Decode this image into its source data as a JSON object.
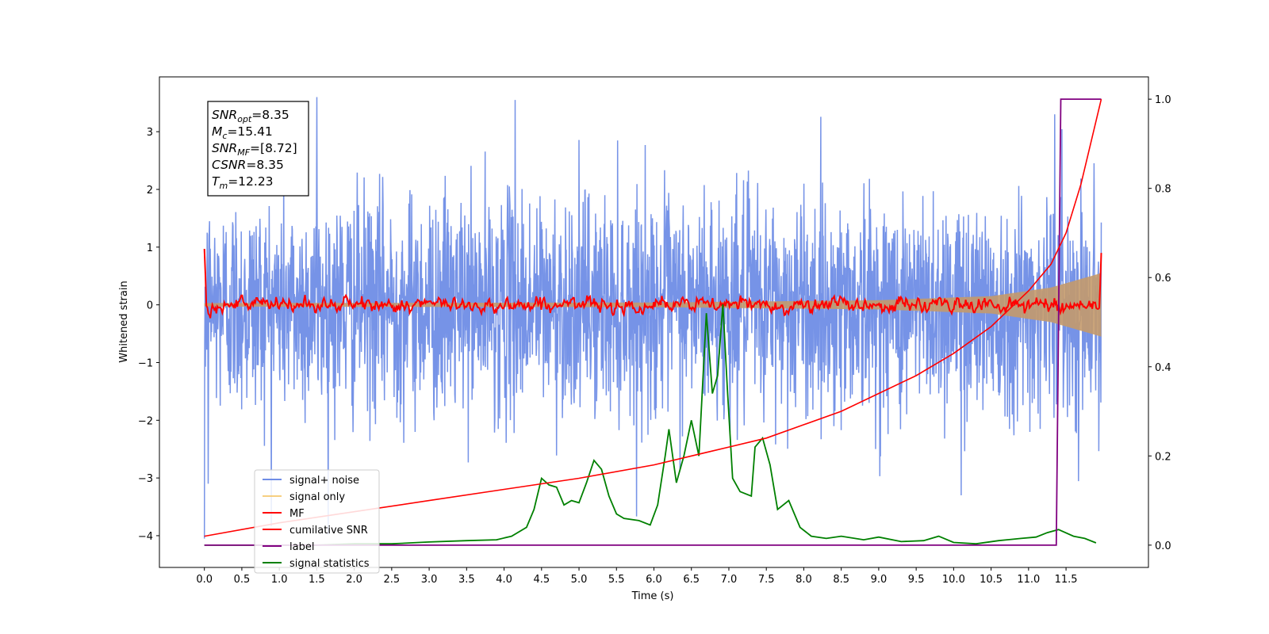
{
  "chart_data": {
    "type": "line",
    "title": "",
    "xlabel": "Time (s)",
    "ylabel": "Whitened strain",
    "xlim": [
      -0.6,
      12.6
    ],
    "ylim": [
      -4.55,
      3.95
    ],
    "y2lim": [
      -0.05,
      1.05
    ],
    "x_ticks": [
      0.0,
      0.5,
      1.0,
      1.5,
      2.0,
      2.5,
      3.0,
      3.5,
      4.0,
      4.5,
      5.0,
      5.5,
      6.0,
      6.5,
      7.0,
      7.5,
      8.0,
      8.5,
      9.0,
      9.5,
      10.0,
      10.5,
      11.0,
      11.5
    ],
    "x_tick_labels": [
      "0.0",
      "0.5",
      "1.0",
      "1.5",
      "2.0",
      "2.5",
      "3.0",
      "3.5",
      "4.0",
      "4.5",
      "5.0",
      "5.5",
      "6.0",
      "6.5",
      "7.0",
      "7.5",
      "8.0",
      "8.5",
      "9.0",
      "9.5",
      "10.0",
      "10.5",
      "11.0",
      "11.5"
    ],
    "y_ticks": [
      3,
      2,
      1,
      0,
      -1,
      -2,
      -3,
      -4
    ],
    "y_tick_labels": [
      "3",
      "2",
      "1",
      "0",
      "−1",
      "−2",
      "−3",
      "−4"
    ],
    "y2_ticks": [
      1.0,
      0.8,
      0.6,
      0.4,
      0.2,
      0.0
    ],
    "y2_tick_labels": [
      "1.0",
      "0.8",
      "0.6",
      "0.4",
      "0.2",
      "0.0"
    ],
    "grid": false,
    "legend_position": "lower-left",
    "annotation": [
      {
        "base": "SNR",
        "sub": "opt",
        "rest": "=8.35"
      },
      {
        "base": "M",
        "sub": "c",
        "rest": "=15.41"
      },
      {
        "base": "SNR",
        "sub": "MF",
        "rest": "=[8.72]"
      },
      {
        "base": "CSNR",
        "sub": "",
        "rest": "=8.35"
      },
      {
        "base": "T",
        "sub": "m",
        "rest": "=12.23"
      }
    ],
    "series": [
      {
        "name": "signal+ noise",
        "color": "#6f8de6",
        "axis": "left",
        "style": "noise",
        "x_range": [
          0.0,
          11.97
        ],
        "amplitude_rms": 1.0,
        "extremes": [
          [
            0.0,
            -4.05
          ],
          [
            1.5,
            3.6
          ],
          [
            4.15,
            3.55
          ],
          [
            10.1,
            -3.3
          ],
          [
            11.35,
            3.3
          ],
          [
            0.05,
            -3.1
          ]
        ]
      },
      {
        "name": "signal only",
        "color": "#f5c361",
        "axis": "left",
        "style": "chirp",
        "x_range": [
          0.0,
          11.97
        ],
        "envelope": [
          [
            0.0,
            0.03
          ],
          [
            6.0,
            0.04
          ],
          [
            9.0,
            0.08
          ],
          [
            10.5,
            0.15
          ],
          [
            11.3,
            0.3
          ],
          [
            11.97,
            0.55
          ]
        ]
      },
      {
        "name": "MF",
        "color": "#ff0000",
        "axis": "left",
        "style": "mf",
        "x_range": [
          0.0,
          11.97
        ],
        "start_value": 0.97,
        "end_value": 0.9,
        "baseline": 0.0,
        "fluctuation": 0.12
      },
      {
        "name": "cumilative SNR",
        "color": "#ff0000",
        "axis": "right",
        "x": [
          0.0,
          1.0,
          2.0,
          3.0,
          4.0,
          5.0,
          6.0,
          7.0,
          7.5,
          8.0,
          8.5,
          9.0,
          9.5,
          10.0,
          10.5,
          11.0,
          11.3,
          11.5,
          11.7,
          11.97
        ],
        "values": [
          0.02,
          0.05,
          0.075,
          0.1,
          0.125,
          0.15,
          0.18,
          0.22,
          0.24,
          0.27,
          0.3,
          0.34,
          0.38,
          0.43,
          0.49,
          0.57,
          0.63,
          0.7,
          0.81,
          1.0
        ]
      },
      {
        "name": "label",
        "color": "#800080",
        "axis": "right",
        "x": [
          0.0,
          11.37,
          11.43,
          11.97
        ],
        "values": [
          0.0,
          0.0,
          1.0,
          1.0
        ]
      },
      {
        "name": "signal statistics",
        "color": "#008000",
        "axis": "right",
        "x": [
          0.0,
          0.5,
          1.0,
          1.5,
          2.0,
          2.5,
          3.0,
          3.5,
          3.9,
          4.1,
          4.3,
          4.4,
          4.5,
          4.6,
          4.7,
          4.8,
          4.9,
          5.0,
          5.1,
          5.2,
          5.3,
          5.4,
          5.5,
          5.6,
          5.8,
          5.95,
          6.05,
          6.15,
          6.2,
          6.3,
          6.4,
          6.5,
          6.6,
          6.7,
          6.78,
          6.85,
          6.92,
          6.98,
          7.05,
          7.15,
          7.3,
          7.35,
          7.45,
          7.55,
          7.65,
          7.8,
          7.95,
          8.1,
          8.3,
          8.5,
          8.8,
          9.0,
          9.3,
          9.6,
          9.8,
          10.0,
          10.3,
          10.6,
          10.9,
          11.1,
          11.25,
          11.4,
          11.6,
          11.75,
          11.9
        ],
        "values": [
          0.0,
          0.0,
          0.0,
          0.0,
          0.003,
          0.003,
          0.007,
          0.01,
          0.012,
          0.02,
          0.04,
          0.08,
          0.15,
          0.135,
          0.13,
          0.09,
          0.1,
          0.095,
          0.14,
          0.19,
          0.17,
          0.11,
          0.07,
          0.06,
          0.055,
          0.045,
          0.09,
          0.2,
          0.26,
          0.14,
          0.2,
          0.28,
          0.2,
          0.52,
          0.34,
          0.38,
          0.54,
          0.35,
          0.15,
          0.12,
          0.11,
          0.22,
          0.24,
          0.18,
          0.08,
          0.1,
          0.04,
          0.02,
          0.015,
          0.02,
          0.012,
          0.018,
          0.008,
          0.01,
          0.02,
          0.006,
          0.003,
          0.01,
          0.015,
          0.018,
          0.028,
          0.035,
          0.02,
          0.015,
          0.005
        ]
      }
    ]
  }
}
